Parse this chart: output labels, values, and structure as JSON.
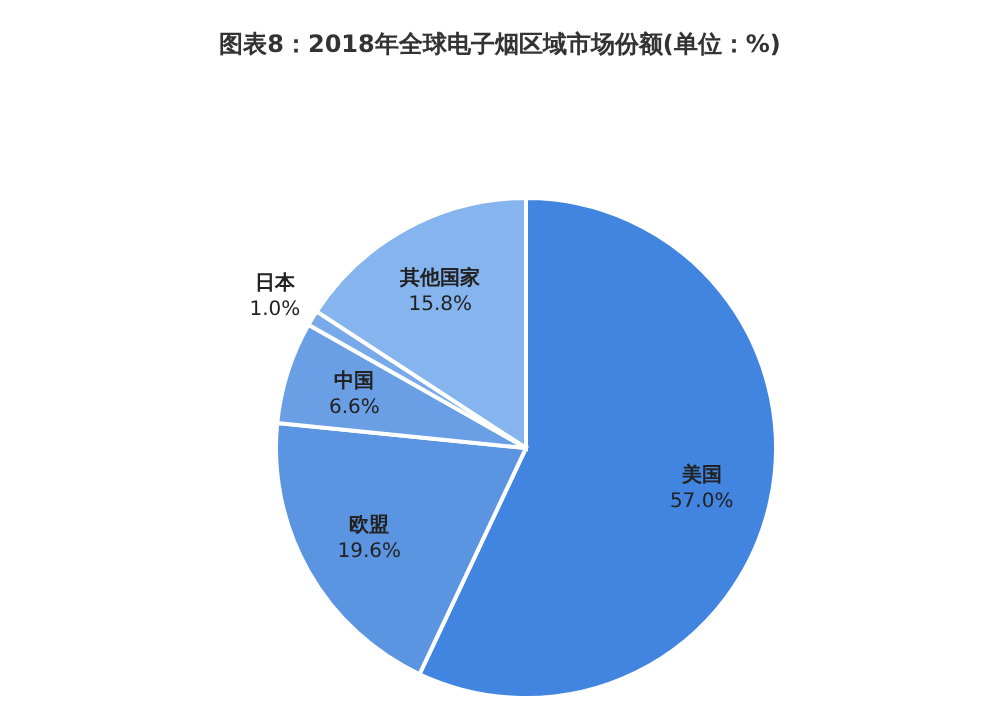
{
  "chart_data": {
    "type": "pie",
    "title": "图表8：2018年全球电子烟区域市场份额(单位：%)",
    "categories": [
      "美国",
      "欧盟",
      "中国",
      "日本",
      "其他国家"
    ],
    "values": [
      57.0,
      19.6,
      6.6,
      1.0,
      15.8
    ],
    "value_labels": [
      "57.0%",
      "19.6%",
      "6.6%",
      "1.0%",
      "15.8%"
    ],
    "colors": [
      "#4185e0",
      "#5b95e2",
      "#6a9fe6",
      "#78a9ea",
      "#86b4ee"
    ]
  }
}
